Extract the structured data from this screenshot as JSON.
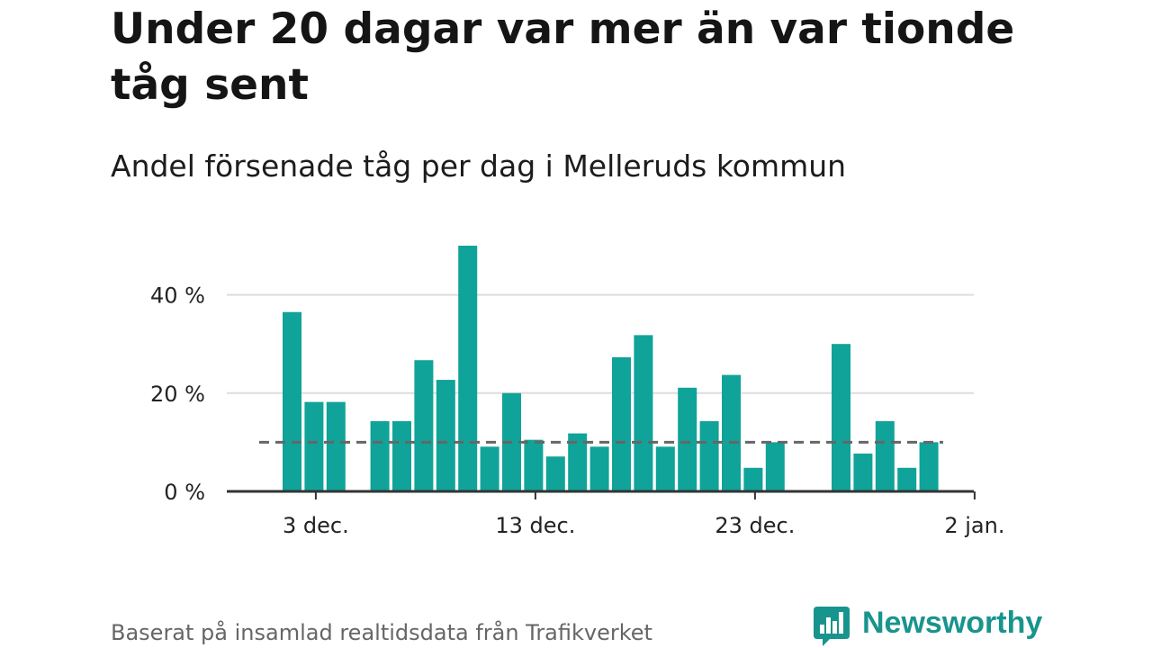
{
  "title": "Under 20 dagar var mer än var tionde tåg sent",
  "subtitle": "Andel försenade tåg per dag i Melleruds kommun",
  "source": "Baserat på insamlad realtidsdata från Trafikverket",
  "brand": {
    "name": "Newsworthy",
    "icon": "newsworthy-logo-icon",
    "color": "#18948e"
  },
  "colors": {
    "bar": "#10a399",
    "grid": "#dddddd",
    "axis": "#333333",
    "reference": "#666666"
  },
  "chart_data": {
    "type": "bar",
    "title": "Under 20 dagar var mer än var tionde tåg sent",
    "subtitle": "Andel försenade tåg per dag i Melleruds kommun",
    "x_ticks": [
      "3 dec.",
      "13 dec.",
      "23 dec.",
      "2 jan."
    ],
    "y_ticks": [
      "0 %",
      "20 %",
      "40 %"
    ],
    "ylim": [
      0,
      50
    ],
    "grid": true,
    "reference_line": 10,
    "series": [
      {
        "values": [
          {
            "date": "2 dec.",
            "value": 36.5
          },
          {
            "date": "3 dec.",
            "value": 18.2
          },
          {
            "date": "4 dec.",
            "value": 18.2
          },
          {
            "date": "5 dec.",
            "value": null
          },
          {
            "date": "6 dec.",
            "value": 14.3
          },
          {
            "date": "7 dec.",
            "value": 14.3
          },
          {
            "date": "8 dec.",
            "value": 26.7
          },
          {
            "date": "9 dec.",
            "value": 22.7
          },
          {
            "date": "10 dec.",
            "value": 50.0
          },
          {
            "date": "11 dec.",
            "value": 9.1
          },
          {
            "date": "12 dec.",
            "value": 20.0
          },
          {
            "date": "13 dec.",
            "value": 10.5
          },
          {
            "date": "14 dec.",
            "value": 7.1
          },
          {
            "date": "15 dec.",
            "value": 11.8
          },
          {
            "date": "16 dec.",
            "value": 9.1
          },
          {
            "date": "17 dec.",
            "value": 27.3
          },
          {
            "date": "18 dec.",
            "value": 31.8
          },
          {
            "date": "19 dec.",
            "value": 9.1
          },
          {
            "date": "20 dec.",
            "value": 21.1
          },
          {
            "date": "21 dec.",
            "value": 14.3
          },
          {
            "date": "22 dec.",
            "value": 23.7
          },
          {
            "date": "23 dec.",
            "value": 4.8
          },
          {
            "date": "24 dec.",
            "value": 10.0
          },
          {
            "date": "25 dec.",
            "value": null
          },
          {
            "date": "26 dec.",
            "value": null
          },
          {
            "date": "27 dec.",
            "value": 30.0
          },
          {
            "date": "28 dec.",
            "value": 7.7
          },
          {
            "date": "29 dec.",
            "value": 14.3
          },
          {
            "date": "30 dec.",
            "value": 4.8
          },
          {
            "date": "31 dec.",
            "value": 10.0
          }
        ]
      }
    ]
  }
}
